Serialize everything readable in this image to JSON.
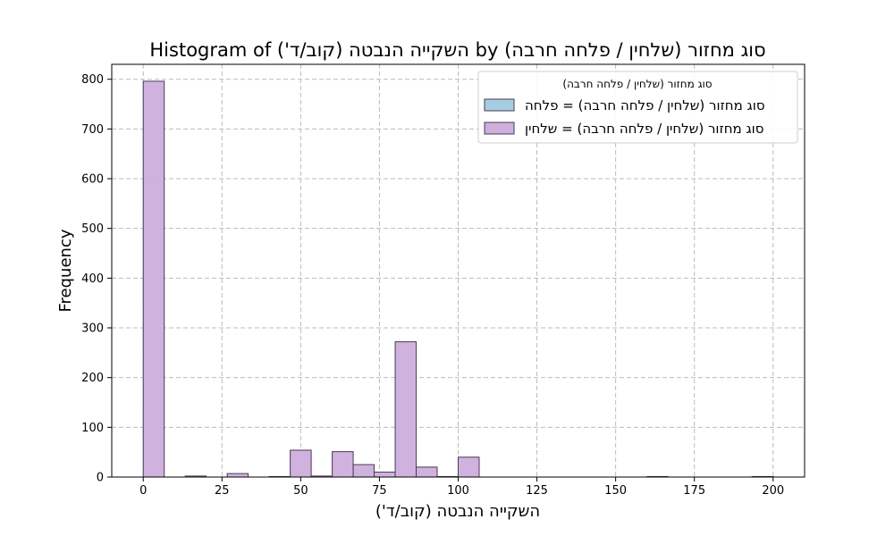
{
  "chart_data": {
    "type": "bar",
    "title": "Histogram of השקייה הנבטה (קוב/ד') by סוג מחזור (שלחין / פלחה חרבה)",
    "xlabel": "השקייה הנבטה (קוב/ד')",
    "ylabel": "Frequency",
    "xlim": [
      -10,
      210
    ],
    "ylim": [
      0,
      830
    ],
    "xticks": [
      0,
      25,
      50,
      75,
      100,
      125,
      150,
      175,
      200
    ],
    "yticks": [
      0,
      100,
      200,
      300,
      400,
      500,
      600,
      700,
      800
    ],
    "grid": true,
    "legend": {
      "title": "סוג מחזור (שלחין / פלחה חרבה)",
      "placement": "top-right"
    },
    "bin_edges": [
      0,
      6.667,
      13.333,
      20,
      26.667,
      33.333,
      40,
      46.667,
      53.333,
      60,
      66.667,
      73.333,
      80,
      86.667,
      93.333,
      100,
      106.667,
      113.333,
      120,
      126.667,
      133.333,
      140,
      146.667,
      153.333,
      160,
      166.667,
      173.333,
      180,
      186.667,
      193.333,
      200
    ],
    "series": [
      {
        "name": "סוג מחזור (שלחין / פלחה חרבה) = פלחה",
        "color": "#a6cee3",
        "values": [
          0,
          0,
          0,
          0,
          0,
          0,
          0,
          0,
          0,
          0,
          0,
          0,
          0,
          0,
          0,
          0,
          0,
          0,
          0,
          0,
          0,
          0,
          0,
          0,
          0,
          0,
          0,
          0,
          0,
          0
        ]
      },
      {
        "name": "סוג מחזור (שלחין / פלחה חרבה) = שלחין",
        "color": "#cdaedc",
        "values": [
          796,
          0,
          2,
          0,
          7,
          0,
          1,
          54,
          2,
          51,
          25,
          10,
          272,
          20,
          1,
          40,
          0,
          0,
          0,
          0,
          0,
          0,
          0,
          0,
          1,
          0,
          0,
          0,
          0,
          1
        ]
      }
    ]
  }
}
